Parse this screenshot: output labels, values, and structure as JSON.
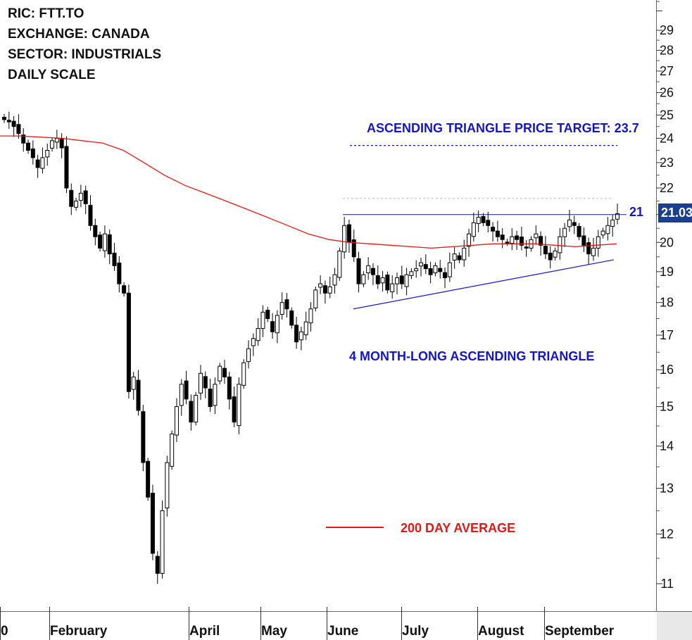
{
  "header": {
    "ric": "RIC: FTT.TO",
    "exchange": "EXCHANGE: CANADA",
    "sector": "SECTOR: INDUSTRIALS",
    "scale": "DAILY SCALE"
  },
  "annotations": {
    "target_label": "ASCENDING TRIANGLE PRICE TARGET: 23.7",
    "pattern_label": "4 MONTH-LONG ASCENDING TRIANGLE",
    "ma_legend": "200 DAY AVERAGE",
    "resistance_label": "21",
    "last_price": "21.03"
  },
  "colors": {
    "annotation_blue": "#1515c8",
    "ma_red": "#e01818",
    "price_tag_bg": "#1a3f8f",
    "candle": "#000000"
  },
  "chart_data": {
    "type": "candlestick",
    "title": "",
    "scale": "log",
    "ylim": [
      10.5,
      31
    ],
    "y_ticks": [
      11,
      12,
      13,
      14,
      15,
      16,
      17,
      18,
      19,
      20,
      21,
      22,
      23,
      24,
      25,
      26,
      27,
      28,
      29
    ],
    "x_month_labels": [
      "0",
      "February",
      "April",
      "May",
      "June",
      "July",
      "August",
      "September"
    ],
    "resistance_level": 21,
    "price_target": 23.7,
    "last_price": 21.03,
    "support_line": {
      "start": 17.8,
      "end": 19.4
    },
    "ma_200": [
      24.1,
      24.1,
      24.05,
      24.0,
      23.9,
      23.8,
      23.5,
      23.0,
      22.5,
      22.1,
      21.8,
      21.5,
      21.2,
      20.9,
      20.6,
      20.3,
      20.1,
      20.0,
      19.95,
      19.9,
      19.85,
      19.8,
      19.85,
      19.9,
      19.95,
      19.95,
      19.95,
      19.9,
      19.85,
      19.9,
      19.95
    ],
    "closes": [
      24.8,
      24.7,
      24.5,
      24.2,
      23.8,
      23.5,
      23.2,
      22.8,
      23.2,
      23.5,
      23.9,
      24.0,
      23.6,
      22.0,
      21.3,
      21.5,
      21.8,
      21.4,
      20.6,
      20.2,
      19.8,
      20.3,
      19.6,
      19.2,
      18.6,
      18.3,
      15.4,
      15.8,
      14.9,
      13.6,
      12.8,
      11.6,
      11.2,
      12.5,
      13.6,
      14.3,
      15.0,
      15.6,
      15.2,
      14.6,
      15.3,
      15.9,
      15.5,
      15.0,
      15.6,
      16.1,
      15.8,
      15.2,
      14.6,
      15.6,
      16.2,
      16.6,
      16.9,
      17.2,
      17.7,
      17.5,
      17.1,
      17.6,
      18.0,
      17.8,
      17.3,
      16.8,
      17.1,
      17.4,
      17.8,
      18.4,
      18.6,
      18.3,
      18.5,
      18.9,
      19.7,
      20.6,
      20.0,
      19.5,
      18.6,
      18.9,
      19.2,
      18.9,
      18.6,
      18.8,
      18.4,
      18.6,
      18.8,
      18.6,
      18.9,
      19.0,
      19.1,
      19.3,
      19.1,
      18.9,
      19.2,
      19.0,
      18.8,
      19.3,
      19.6,
      19.4,
      19.8,
      20.3,
      20.7,
      20.9,
      20.7,
      20.6,
      20.4,
      20.2,
      20.1,
      20.0,
      20.2,
      20.1,
      19.9,
      19.8,
      20.1,
      20.3,
      19.9,
      19.6,
      19.4,
      19.7,
      20.2,
      20.5,
      20.8,
      20.6,
      20.2,
      19.9,
      19.6,
      19.8,
      20.2,
      20.4,
      20.6,
      20.8,
      21.03
    ]
  }
}
